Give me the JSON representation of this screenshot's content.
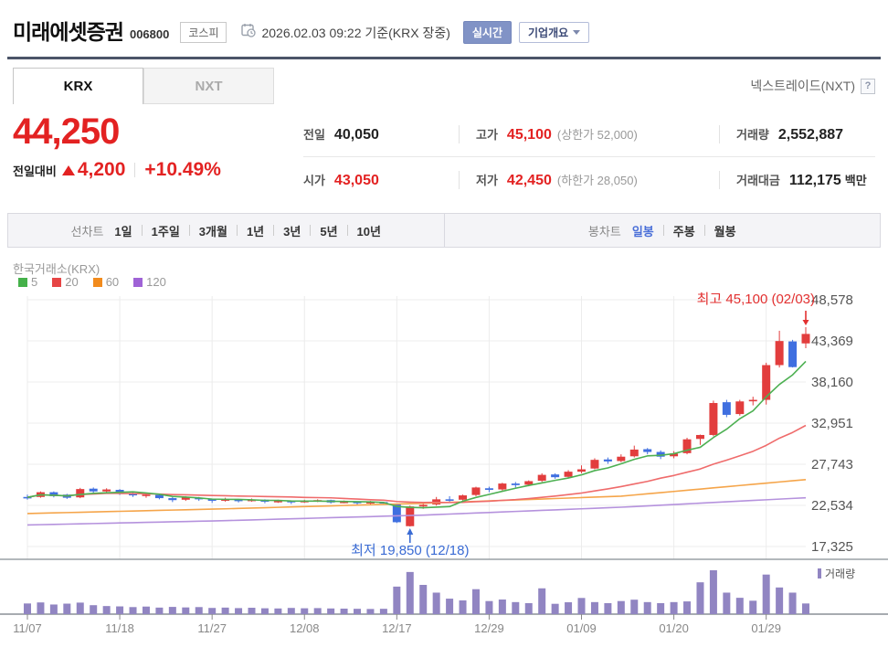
{
  "header": {
    "title": "미래에셋증권",
    "code": "006800",
    "market_badge": "코스피",
    "datetime_note": "2026.02.03 09:22 기준(KRX 장중)",
    "realtime_button": "실시간",
    "overview_button": "기업개요"
  },
  "tabs": {
    "krx": "KRX",
    "nxt": "NXT",
    "right_link": "넥스트레이드(NXT)",
    "help_icon": "?"
  },
  "quote": {
    "price": "44,250",
    "change_label": "전일대비",
    "change_value": "4,200",
    "change_pct": "+10.49%",
    "fields": [
      {
        "label": "전일",
        "value": "40,050",
        "extra": ""
      },
      {
        "label": "고가",
        "value": "45,100",
        "extra": "(상한가 52,000)"
      },
      {
        "label": "거래량",
        "value": "2,552,887",
        "extra": ""
      },
      {
        "label": "시가",
        "value": "43,050",
        "extra": ""
      },
      {
        "label": "저가",
        "value": "42,450",
        "extra": "(하한가 28,050)"
      },
      {
        "label": "거래대금",
        "value": "112,175",
        "suffix": "백만"
      }
    ]
  },
  "toolbar": {
    "left_label": "선차트",
    "left_items": [
      "1일",
      "1주일",
      "3개월",
      "1년",
      "3년",
      "5년",
      "10년"
    ],
    "right_label": "봉차트",
    "right_items": [
      "일봉",
      "주봉",
      "월봉"
    ],
    "active_item": "일봉"
  },
  "chart_data": {
    "type": "candlestick",
    "exchange_label": "한국거래소(KRX)",
    "volume_label": "거래량",
    "legend": [
      {
        "label": "5",
        "color": "#45b14a"
      },
      {
        "label": "20",
        "color": "#e64545"
      },
      {
        "label": "60",
        "color": "#f28b1d"
      },
      {
        "label": "120",
        "color": "#9f63d6"
      }
    ],
    "y_ticks": [
      {
        "v": 48578,
        "label": "48,578"
      },
      {
        "v": 43369,
        "label": "43,369"
      },
      {
        "v": 38160,
        "label": "38,160"
      },
      {
        "v": 32951,
        "label": "32,951"
      },
      {
        "v": 27743,
        "label": "27,743"
      },
      {
        "v": 22534,
        "label": "22,534"
      },
      {
        "v": 17325,
        "label": "17,325"
      }
    ],
    "x_ticks": [
      {
        "i": 0,
        "label": "11/07"
      },
      {
        "i": 7,
        "label": "11/18"
      },
      {
        "i": 14,
        "label": "11/27"
      },
      {
        "i": 21,
        "label": "12/08"
      },
      {
        "i": 28,
        "label": "12/17"
      },
      {
        "i": 35,
        "label": "12/29"
      },
      {
        "i": 42,
        "label": "01/09"
      },
      {
        "i": 49,
        "label": "01/20"
      },
      {
        "i": 56,
        "label": "01/29"
      }
    ],
    "annotations": {
      "high": {
        "text": "최고 45,100 (02/03)",
        "index": 59,
        "price": 45100,
        "color": "#e23030"
      },
      "low": {
        "text": "최저 19,850 (12/18)",
        "index": 29,
        "price": 19850,
        "color": "#3a6bd4"
      }
    },
    "colors": {
      "up": "#e23d3d",
      "down": "#3f6fe0",
      "ma5": "#4db052",
      "ma20": "#ef6b6b",
      "ma60": "#f5a54a",
      "ma120": "#b592dd",
      "volume": "#9185c2",
      "grid": "#ececec",
      "axis_text": "#555",
      "x_text": "#888"
    },
    "ma60_points": [
      [
        0,
        21500
      ],
      [
        15,
        22100
      ],
      [
        30,
        22800
      ],
      [
        45,
        23700
      ],
      [
        59,
        25800
      ]
    ],
    "ma120_points": [
      [
        0,
        20050
      ],
      [
        15,
        20600
      ],
      [
        30,
        21300
      ],
      [
        45,
        22300
      ],
      [
        59,
        23500
      ]
    ],
    "candles": [
      [
        "11/07",
        23600,
        23900,
        23250,
        23550,
        620
      ],
      [
        "11/10",
        23600,
        24300,
        23500,
        24200,
        680
      ],
      [
        "11/11",
        24200,
        24300,
        23550,
        23700,
        560
      ],
      [
        "11/12",
        23900,
        24000,
        23350,
        23500,
        610
      ],
      [
        "11/13",
        23550,
        24750,
        23450,
        24600,
        670
      ],
      [
        "11/14",
        24650,
        24800,
        24100,
        24300,
        520
      ],
      [
        "11/17",
        24300,
        24700,
        24000,
        24550,
        470
      ],
      [
        "11/18",
        24500,
        24600,
        23850,
        24000,
        450
      ],
      [
        "11/19",
        24050,
        24200,
        23600,
        23800,
        410
      ],
      [
        "11/20",
        23800,
        24100,
        23500,
        23900,
        440
      ],
      [
        "11/21",
        23850,
        23950,
        23300,
        23450,
        380
      ],
      [
        "11/24",
        23450,
        23600,
        22950,
        23200,
        420
      ],
      [
        "11/25",
        23250,
        23700,
        23100,
        23550,
        390
      ],
      [
        "11/26",
        23500,
        23600,
        23100,
        23300,
        410
      ],
      [
        "11/27",
        23300,
        23400,
        22850,
        23150,
        360
      ],
      [
        "11/28",
        23200,
        23500,
        23000,
        23300,
        380
      ],
      [
        "12/01",
        23250,
        23350,
        22900,
        23150,
        350
      ],
      [
        "12/02",
        23150,
        23400,
        23000,
        23250,
        370
      ],
      [
        "12/03",
        23250,
        23300,
        22800,
        23000,
        340
      ],
      [
        "12/04",
        23000,
        23250,
        22850,
        23100,
        330
      ],
      [
        "12/05",
        23100,
        23150,
        22700,
        22950,
        360
      ],
      [
        "12/08",
        22950,
        23250,
        22850,
        23100,
        340
      ],
      [
        "12/09",
        23100,
        23300,
        22950,
        23200,
        350
      ],
      [
        "12/10",
        23200,
        23250,
        22750,
        22900,
        330
      ],
      [
        "12/11",
        22900,
        23150,
        22800,
        23000,
        320
      ],
      [
        "12/12",
        23000,
        23050,
        22600,
        22800,
        310
      ],
      [
        "12/15",
        22800,
        23100,
        22700,
        22950,
        300
      ],
      [
        "12/16",
        22950,
        23000,
        22600,
        22850,
        310
      ],
      [
        "12/17",
        22700,
        22750,
        20300,
        20400,
        1600
      ],
      [
        "12/18",
        19900,
        22500,
        19850,
        22400,
        2450
      ],
      [
        "12/19",
        22400,
        22800,
        22100,
        22600,
        1700
      ],
      [
        "12/22",
        22650,
        23600,
        22500,
        23300,
        1250
      ],
      [
        "12/23",
        23300,
        23700,
        23000,
        23200,
        900
      ],
      [
        "12/24",
        23250,
        23900,
        23150,
        23800,
        800
      ],
      [
        "12/26",
        23850,
        24900,
        23700,
        24800,
        1450
      ],
      [
        "12/29",
        24700,
        24900,
        24200,
        24500,
        760
      ],
      [
        "12/30",
        24550,
        25400,
        24400,
        25300,
        850
      ],
      [
        "01/02",
        25300,
        25500,
        24800,
        25100,
        700
      ],
      [
        "01/05",
        25150,
        25700,
        24950,
        25600,
        640
      ],
      [
        "01/06",
        25650,
        26600,
        25500,
        26400,
        1500
      ],
      [
        "01/07",
        26450,
        26600,
        25900,
        26100,
        600
      ],
      [
        "01/08",
        26150,
        27000,
        26000,
        26800,
        690
      ],
      [
        "01/09",
        26800,
        27600,
        26600,
        27100,
        940
      ],
      [
        "01/12",
        27200,
        28500,
        27100,
        28300,
        700
      ],
      [
        "01/13",
        28350,
        28600,
        27800,
        28100,
        640
      ],
      [
        "01/14",
        28150,
        29000,
        28000,
        28700,
        760
      ],
      [
        "01/15",
        28750,
        30100,
        28600,
        29600,
        840
      ],
      [
        "01/16",
        29650,
        29800,
        29000,
        29300,
        700
      ],
      [
        "01/19",
        29300,
        29500,
        28400,
        28700,
        640
      ],
      [
        "01/20",
        28750,
        29400,
        28500,
        29100,
        700
      ],
      [
        "01/21",
        29150,
        31100,
        29000,
        30900,
        740
      ],
      [
        "01/22",
        30950,
        31500,
        30200,
        31450,
        1850
      ],
      [
        "01/23",
        31450,
        35800,
        31300,
        35500,
        2550
      ],
      [
        "01/26",
        35600,
        35900,
        33700,
        34000,
        1250
      ],
      [
        "01/27",
        34100,
        35900,
        33900,
        35700,
        950
      ],
      [
        "01/28",
        35750,
        36300,
        35200,
        35900,
        780
      ],
      [
        "01/29",
        35900,
        40600,
        35300,
        40300,
        2300
      ],
      [
        "01/30",
        40300,
        44650,
        40000,
        43350,
        1550
      ],
      [
        "02/02",
        43300,
        43500,
        40000,
        40050,
        1250
      ],
      [
        "02/03",
        43050,
        45100,
        42450,
        44250,
        620
      ]
    ]
  }
}
